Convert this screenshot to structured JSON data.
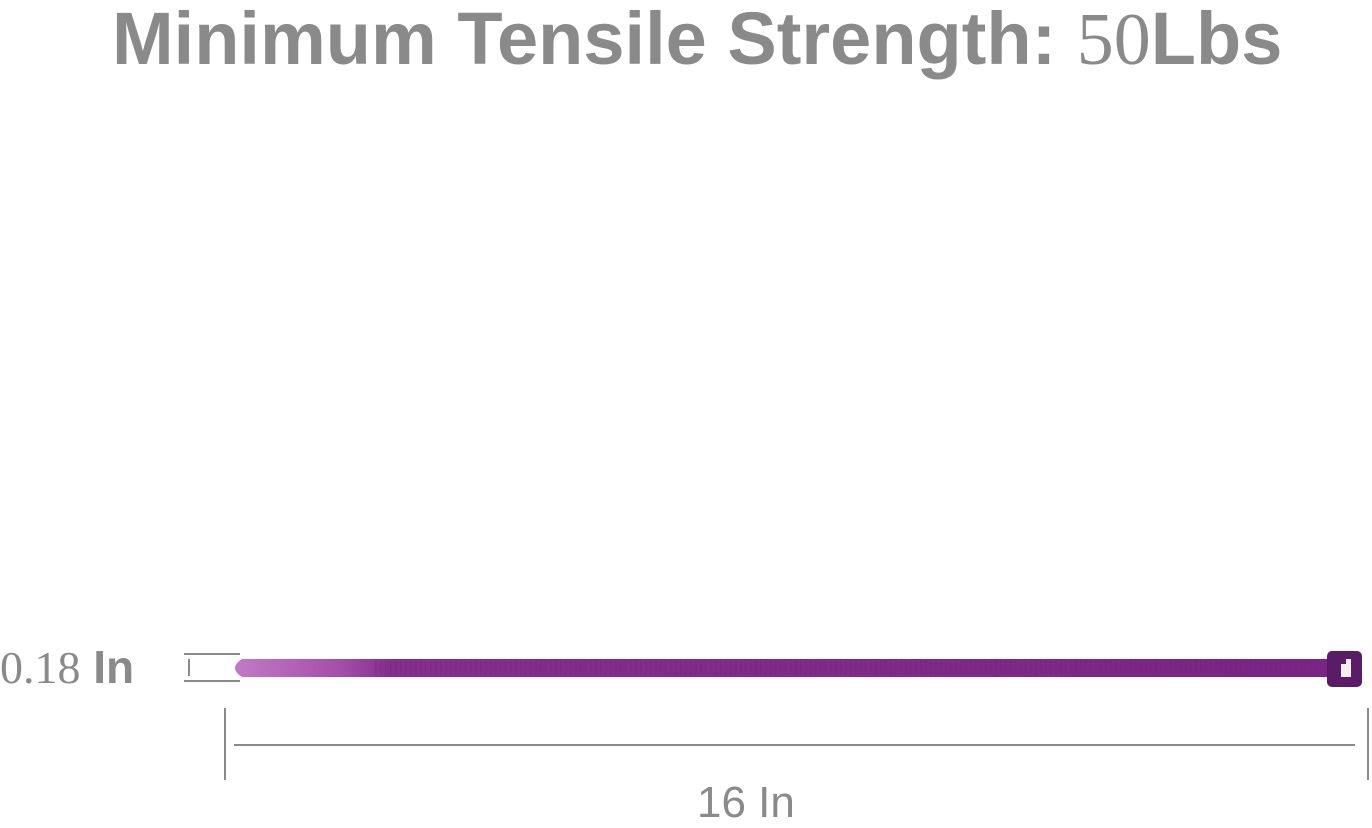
{
  "title": {
    "label": "Minimum Tensile Strength:",
    "value": "50",
    "unit": "Lbs"
  },
  "dimensions": {
    "width": {
      "value": "0.18",
      "unit": "In"
    },
    "length": "16 In"
  },
  "product": {
    "name": "cable-tie",
    "color": "#7a2a8a",
    "tip_color": "#b462b8"
  }
}
